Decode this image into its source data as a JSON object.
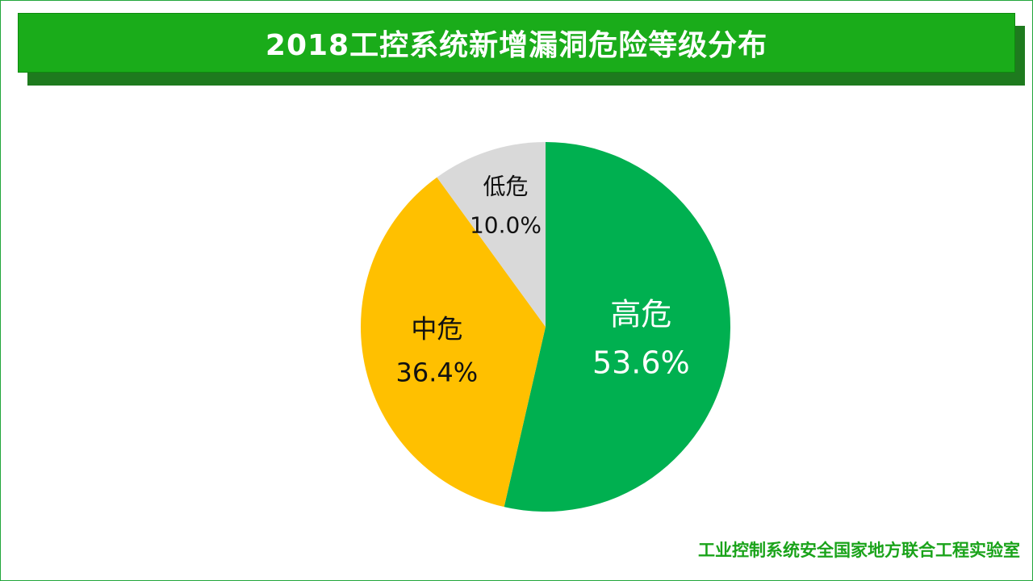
{
  "title": "2018工控系统新增漏洞危险等级分布",
  "footer": "工业控制系统安全国家地方联合工程实验室",
  "chart_data": {
    "type": "pie",
    "title": "2018工控系统新增漏洞危险等级分布",
    "start": "12 o'clock, clockwise",
    "slices": [
      {
        "label": "高危",
        "percent_label": "53.6%",
        "value": 53.6,
        "color": "#00b050",
        "text_color": "#ffffff"
      },
      {
        "label": "中危",
        "percent_label": "36.4%",
        "value": 36.4,
        "color": "#ffc000",
        "text_color": "#111111"
      },
      {
        "label": "低危",
        "percent_label": "10.0%",
        "value": 10.0,
        "color": "#d9d9d9",
        "text_color": "#111111"
      }
    ]
  }
}
